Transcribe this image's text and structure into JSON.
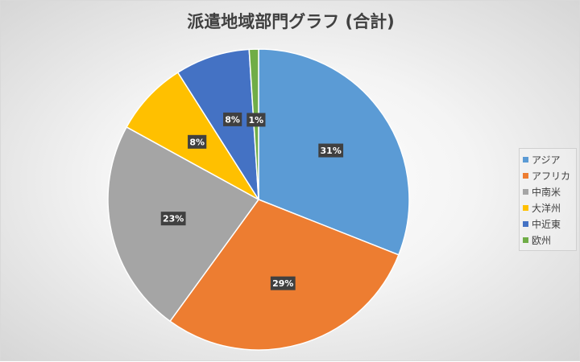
{
  "chart_data": {
    "type": "pie",
    "title": "派遣地域部門グラフ (合計)",
    "categories": [
      "アジア",
      "アフリカ",
      "中南米",
      "大洋州",
      "中近東",
      "欧州"
    ],
    "values": [
      31,
      29,
      23,
      8,
      8,
      1
    ],
    "data_labels": [
      "31%",
      "29%",
      "23%",
      "8%",
      "8%",
      "1%"
    ],
    "colors": [
      "#5b9bd5",
      "#ed7d31",
      "#a5a5a5",
      "#ffc000",
      "#4472c4",
      "#70ad47"
    ],
    "legend_position": "right"
  }
}
